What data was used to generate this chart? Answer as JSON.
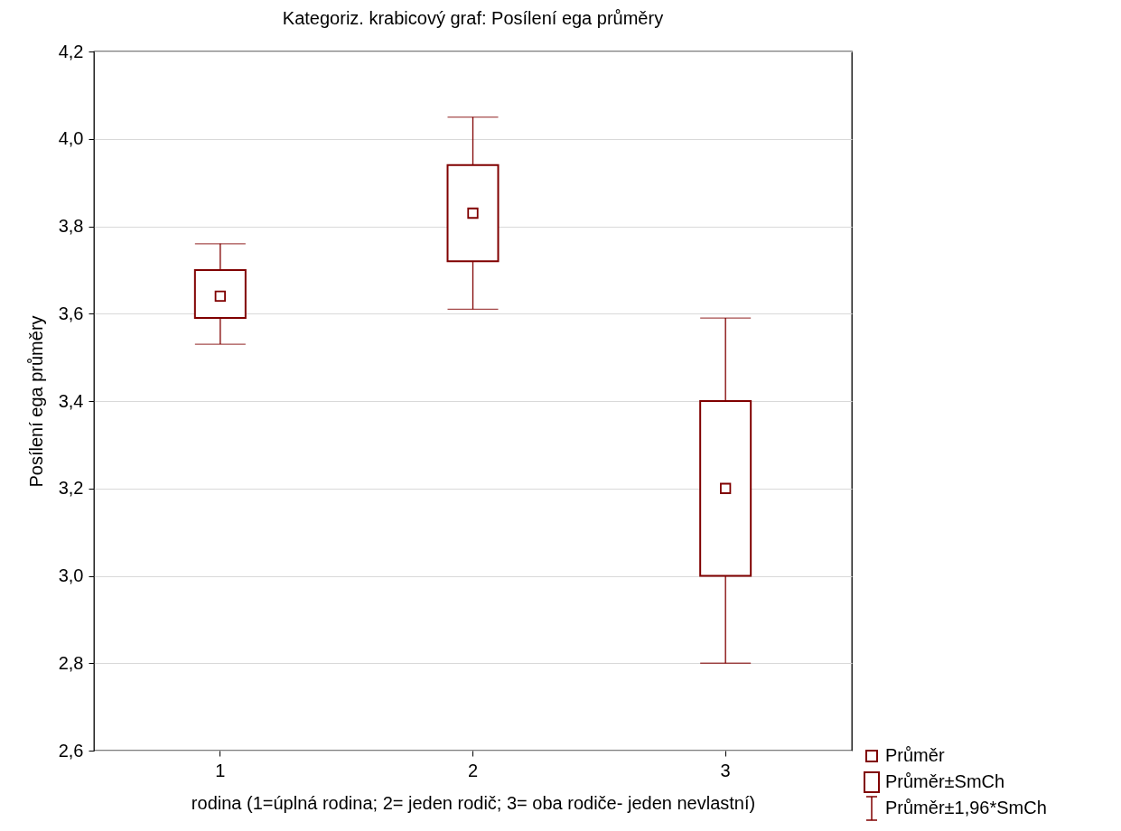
{
  "chart_data": {
    "type": "box",
    "title": "Kategoriz. krabicový graf: Posílení ega průměry",
    "xlabel": "rodina (1=úplná rodina; 2= jeden rodič; 3= oba rodiče- jeden nevlastní)",
    "ylabel": "Posílení ega průměry",
    "categories": [
      "1",
      "2",
      "3"
    ],
    "series": [
      {
        "color": "#800000",
        "boxes": [
          {
            "low": 3.53,
            "q1": 3.59,
            "q3": 3.7,
            "high": 3.76,
            "mean": 3.64
          },
          {
            "low": 3.61,
            "q1": 3.72,
            "q3": 3.94,
            "high": 4.05,
            "mean": 3.83
          },
          {
            "low": 2.8,
            "q1": 3.0,
            "q3": 3.4,
            "high": 3.59,
            "mean": 3.2
          }
        ]
      }
    ],
    "ylim": [
      2.6,
      4.2
    ],
    "yticks": [
      {
        "value": 2.6,
        "label": "2,6"
      },
      {
        "value": 2.8,
        "label": "2,8"
      },
      {
        "value": 3.0,
        "label": "3,0"
      },
      {
        "value": 3.2,
        "label": "3,2"
      },
      {
        "value": 3.4,
        "label": "3,4"
      },
      {
        "value": 3.6,
        "label": "3,6"
      },
      {
        "value": 3.8,
        "label": "3,8"
      },
      {
        "value": 4.0,
        "label": "4,0"
      },
      {
        "value": 4.2,
        "label": "4,2"
      }
    ],
    "grid": "y",
    "annotations": [
      "Průměr",
      "Průměr±SmCh",
      "Průměr±1,96*SmCh"
    ]
  }
}
